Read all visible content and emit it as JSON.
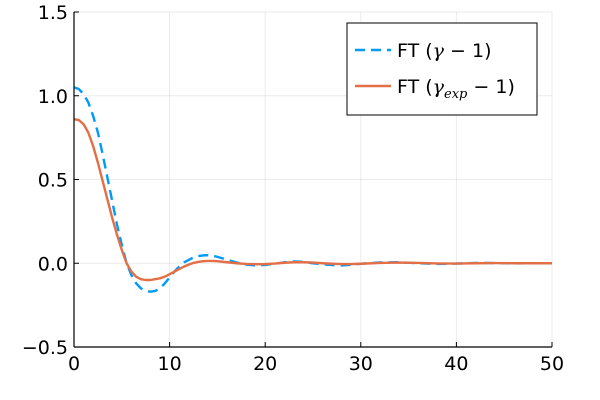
{
  "chart_data": {
    "type": "line",
    "title": "",
    "xlabel": "",
    "ylabel": "",
    "xlim": [
      0,
      50
    ],
    "ylim": [
      -0.5,
      1.5
    ],
    "xticks": [
      0,
      10,
      20,
      30,
      40,
      50
    ],
    "xtick_labels": [
      "0",
      "10",
      "20",
      "30",
      "40",
      "50"
    ],
    "yticks": [
      -0.5,
      0.0,
      0.5,
      1.0,
      1.5
    ],
    "ytick_labels": [
      "−0.5",
      "0.0",
      "0.5",
      "1.0",
      "1.5"
    ],
    "grid": true,
    "legend_position": "top-right",
    "series": [
      {
        "name": "FT (γ − 1)",
        "legend": {
          "prefix": "FT (",
          "symbol": "γ",
          "suffix": " − 1)"
        },
        "style": "dashed",
        "color": "#009AFA",
        "x": [
          0,
          0.5,
          1,
          1.5,
          2,
          2.5,
          3,
          3.5,
          4,
          4.5,
          5,
          5.5,
          6,
          6.5,
          7,
          7.5,
          8,
          8.5,
          9,
          9.5,
          10,
          10.5,
          11,
          11.5,
          12,
          12.5,
          13,
          13.5,
          14,
          14.5,
          15,
          15.5,
          16,
          17,
          18,
          19,
          20,
          21,
          22,
          23,
          24,
          25,
          26,
          27,
          28,
          29,
          30,
          32,
          34,
          36,
          38,
          40,
          42,
          44,
          46,
          48,
          50
        ],
        "y": [
          1.05,
          1.04,
          1.01,
          0.96,
          0.88,
          0.78,
          0.65,
          0.51,
          0.37,
          0.23,
          0.11,
          0.0,
          -0.07,
          -0.12,
          -0.15,
          -0.165,
          -0.17,
          -0.165,
          -0.15,
          -0.12,
          -0.085,
          -0.05,
          -0.02,
          0.005,
          0.02,
          0.035,
          0.043,
          0.047,
          0.048,
          0.045,
          0.038,
          0.03,
          0.02,
          0.005,
          -0.008,
          -0.013,
          -0.01,
          -0.003,
          0.006,
          0.011,
          0.008,
          0.0,
          -0.006,
          -0.011,
          -0.013,
          -0.009,
          -0.003,
          0.005,
          0.006,
          0.0,
          -0.004,
          -0.002,
          0.002,
          0.001,
          -0.001,
          0.0,
          0.0
        ]
      },
      {
        "name": "FT (γexp − 1)",
        "legend": {
          "prefix": "FT (",
          "symbol": "γ",
          "subscript": "exp",
          "suffix": " − 1)"
        },
        "style": "solid",
        "color": "#E26F46",
        "x": [
          0,
          0.5,
          1,
          1.5,
          2,
          2.5,
          3,
          3.5,
          4,
          4.5,
          5,
          5.5,
          6,
          6.5,
          7,
          7.5,
          8,
          8.5,
          9,
          9.5,
          10,
          10.5,
          11,
          11.5,
          12,
          12.5,
          13,
          13.5,
          14,
          14.5,
          15,
          16,
          17,
          18,
          19,
          20,
          21,
          22,
          23,
          24,
          25,
          26,
          27,
          28,
          29,
          30,
          32,
          34,
          36,
          38,
          40,
          42,
          44,
          46,
          48,
          50
        ],
        "y": [
          0.86,
          0.855,
          0.83,
          0.78,
          0.7,
          0.6,
          0.49,
          0.38,
          0.27,
          0.17,
          0.08,
          0.0,
          -0.05,
          -0.08,
          -0.095,
          -0.1,
          -0.1,
          -0.095,
          -0.09,
          -0.08,
          -0.065,
          -0.05,
          -0.035,
          -0.02,
          -0.008,
          0.002,
          0.008,
          0.012,
          0.014,
          0.014,
          0.012,
          0.006,
          0.0,
          -0.004,
          -0.006,
          -0.005,
          -0.002,
          0.003,
          0.006,
          0.006,
          0.004,
          0.0,
          -0.003,
          -0.005,
          -0.005,
          -0.003,
          0.002,
          0.004,
          0.002,
          -0.001,
          -0.002,
          0.0,
          0.001,
          0.0,
          0.0,
          0.0
        ]
      }
    ]
  }
}
